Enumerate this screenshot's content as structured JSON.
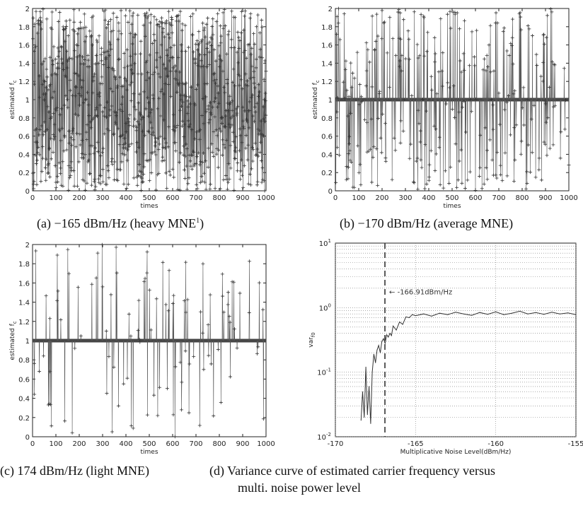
{
  "chart_data": [
    {
      "type": "line",
      "panel": "a",
      "caption": "(a) −165 dBm/Hz (heavy MNE",
      "caption_sup": "1",
      "caption_tail": ")",
      "xlabel": "times",
      "ylabel": "estimated f",
      "ylabel_sub": "c",
      "xlim": [
        0,
        1000
      ],
      "ylim": [
        0,
        2
      ],
      "xticks": [
        "0",
        "100",
        "200",
        "300",
        "400",
        "500",
        "600",
        "700",
        "800",
        "900",
        "1000"
      ],
      "yticks": [
        "0",
        "0.2",
        "0.4",
        "0.6",
        "0.8",
        "1",
        "1.2",
        "1.4",
        "1.6",
        "1.8",
        "2"
      ],
      "series": [
        {
          "values": "samples 1..1000, heavily scattered between 0 and 2 (uniform spread)"
        }
      ],
      "density": "heavy",
      "baseline": null
    },
    {
      "type": "line",
      "panel": "b",
      "caption": "(b) −170 dBm/Hz (average MNE)",
      "xlabel": "times",
      "ylabel": "estimated f",
      "ylabel_sub": "c",
      "xlim": [
        0,
        1000
      ],
      "ylim": [
        0,
        2
      ],
      "xticks": [
        "0",
        "100",
        "200",
        "300",
        "400",
        "500",
        "600",
        "700",
        "800",
        "900",
        "1000"
      ],
      "yticks": [
        "0",
        "0.2",
        "0.4",
        "0.6",
        "0.8",
        "1",
        "1.2",
        "1.4",
        "1.6",
        "1.8",
        "2"
      ],
      "density": "average",
      "baseline": 1
    },
    {
      "type": "line",
      "panel": "c",
      "caption": "(c)  174 dBm/Hz (light MNE)",
      "xlabel": "times",
      "ylabel": "estimated f",
      "ylabel_sub": "c",
      "xlim": [
        0,
        1000
      ],
      "ylim": [
        0,
        2
      ],
      "xticks": [
        "0",
        "100",
        "200",
        "300",
        "400",
        "500",
        "600",
        "700",
        "800",
        "900",
        "1000"
      ],
      "yticks": [
        "0",
        "0.2",
        "0.4",
        "0.6",
        "0.8",
        "1",
        "1.2",
        "1.4",
        "1.6",
        "1.8",
        "2"
      ],
      "density": "light",
      "baseline": 1
    },
    {
      "type": "line",
      "panel": "d",
      "caption": "(d) Variance curve of estimated carrier frequency versus",
      "caption2": "multi. noise power level",
      "xlabel": "Multiplicative Noise Level(dBm/Hz)",
      "ylabel": "var",
      "ylabel_sub": "f0",
      "yscale": "log",
      "xlim": [
        -170,
        -155
      ],
      "ylim": [
        0.01,
        10
      ],
      "xticks": [
        "-170",
        "-165",
        "-160",
        "-155"
      ],
      "yticks": [
        "10",
        "10",
        "10",
        "10"
      ],
      "yticks_exp": [
        "-2",
        "-1",
        "0",
        "1"
      ],
      "grid": true,
      "annotation": {
        "text": "← -166.91dBm/Hz",
        "x": -166.91
      },
      "series": [
        {
          "x": [
            -168.4,
            -168.3,
            -168.2,
            -168.1,
            -168.0,
            -167.9,
            -167.8,
            -167.7,
            -167.6,
            -167.5,
            -167.4,
            -167.3,
            -167.2,
            -167.1,
            -167.0,
            -166.9,
            -166.8,
            -166.7,
            -166.6,
            -166.5,
            -166.4,
            -166.2,
            -166.0,
            -165.8,
            -165.6,
            -165.4,
            -165.2,
            -165.0,
            -164.5,
            -164.0,
            -163.5,
            -163.0,
            -162.5,
            -162.0,
            -161.5,
            -161.0,
            -160.5,
            -160.0,
            -159.5,
            -159.0,
            -158.5,
            -158.0,
            -157.5,
            -157.0,
            -156.5,
            -156.0,
            -155.5,
            -155.0
          ],
          "values": [
            0.018,
            0.05,
            0.02,
            0.12,
            0.022,
            0.06,
            0.016,
            0.1,
            0.19,
            0.14,
            0.22,
            0.26,
            0.2,
            0.3,
            0.33,
            0.28,
            0.38,
            0.35,
            0.4,
            0.37,
            0.52,
            0.45,
            0.6,
            0.55,
            0.72,
            0.7,
            0.78,
            0.75,
            0.8,
            0.74,
            0.82,
            0.78,
            0.85,
            0.8,
            0.76,
            0.84,
            0.79,
            0.86,
            0.78,
            0.82,
            0.88,
            0.8,
            0.84,
            0.79,
            0.85,
            0.8,
            0.83,
            0.78
          ]
        }
      ]
    }
  ]
}
